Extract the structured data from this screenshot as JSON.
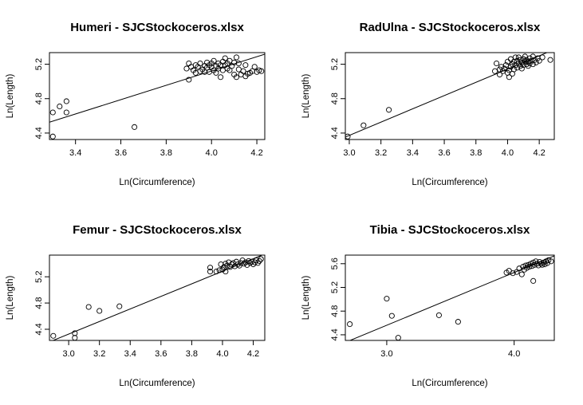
{
  "chart_data": [
    {
      "type": "scatter",
      "title": "Humeri - SJCStockoceros.xlsx",
      "xlabel": "Ln(Circumference)",
      "ylabel": "Ln(Length)",
      "xlim": [
        3.285,
        4.235
      ],
      "ylim": [
        4.325,
        5.335
      ],
      "xticks": [
        "3.4",
        "3.6",
        "3.8",
        "4.0",
        "4.2"
      ],
      "yticks": [
        "4.4",
        "4.8",
        "5.2"
      ],
      "fit": {
        "x": [
          3.285,
          4.235
        ],
        "y": [
          4.526,
          5.317
        ]
      },
      "points": [
        [
          3.3,
          4.64
        ],
        [
          3.33,
          4.71
        ],
        [
          3.36,
          4.77
        ],
        [
          3.36,
          4.64
        ],
        [
          3.3,
          4.36
        ],
        [
          3.66,
          4.47
        ],
        [
          3.89,
          5.15
        ],
        [
          3.9,
          5.21
        ],
        [
          3.9,
          5.02
        ],
        [
          3.91,
          5.17
        ],
        [
          3.92,
          5.13
        ],
        [
          3.93,
          5.19
        ],
        [
          3.93,
          5.1
        ],
        [
          3.94,
          5.17
        ],
        [
          3.95,
          5.12
        ],
        [
          3.95,
          5.21
        ],
        [
          3.96,
          5.14
        ],
        [
          3.97,
          5.18
        ],
        [
          3.97,
          5.11
        ],
        [
          3.98,
          5.22
        ],
        [
          3.98,
          5.16
        ],
        [
          3.99,
          5.19
        ],
        [
          3.99,
          5.11
        ],
        [
          4.0,
          5.17
        ],
        [
          4.0,
          5.21
        ],
        [
          4.01,
          5.13
        ],
        [
          4.01,
          5.24
        ],
        [
          4.02,
          5.18
        ],
        [
          4.02,
          5.1
        ],
        [
          4.03,
          5.21
        ],
        [
          4.03,
          5.15
        ],
        [
          4.04,
          5.19
        ],
        [
          4.04,
          5.05
        ],
        [
          4.05,
          5.23
        ],
        [
          4.05,
          5.13
        ],
        [
          4.06,
          5.27
        ],
        [
          4.06,
          5.19
        ],
        [
          4.07,
          5.21
        ],
        [
          4.07,
          5.15
        ],
        [
          4.08,
          5.24
        ],
        [
          4.08,
          5.13
        ],
        [
          4.09,
          5.18
        ],
        [
          4.1,
          5.08
        ],
        [
          4.1,
          5.22
        ],
        [
          4.11,
          5.28
        ],
        [
          4.11,
          5.05
        ],
        [
          4.12,
          5.14
        ],
        [
          4.12,
          5.21
        ],
        [
          4.13,
          5.08
        ],
        [
          4.14,
          5.12
        ],
        [
          4.15,
          5.06
        ],
        [
          4.15,
          5.19
        ],
        [
          4.16,
          5.09
        ],
        [
          4.17,
          5.1
        ],
        [
          4.18,
          5.12
        ],
        [
          4.19,
          5.17
        ],
        [
          4.2,
          5.11
        ],
        [
          4.21,
          5.13
        ],
        [
          4.22,
          5.12
        ]
      ]
    },
    {
      "type": "scatter",
      "title": "RadUlna - SJCStockoceros.xlsx",
      "xlabel": "Ln(Circumference)",
      "ylabel": "Ln(Length)",
      "xlim": [
        2.975,
        4.295
      ],
      "ylim": [
        4.325,
        5.335
      ],
      "xticks": [
        "3.0",
        "3.2",
        "3.4",
        "3.6",
        "3.8",
        "4.0",
        "4.2"
      ],
      "yticks": [
        "4.4",
        "4.8",
        "5.2"
      ],
      "fit": {
        "x": [
          2.975,
          4.295
        ],
        "y": [
          4.354,
          5.371
        ]
      },
      "points": [
        [
          2.99,
          4.36
        ],
        [
          3.09,
          4.49
        ],
        [
          3.25,
          4.67
        ],
        [
          3.92,
          5.12
        ],
        [
          3.93,
          5.21
        ],
        [
          3.95,
          5.14
        ],
        [
          3.95,
          5.08
        ],
        [
          3.96,
          5.17
        ],
        [
          3.97,
          5.12
        ],
        [
          3.98,
          5.15
        ],
        [
          3.99,
          5.19
        ],
        [
          4.0,
          5.1
        ],
        [
          4.0,
          5.23
        ],
        [
          4.01,
          5.13
        ],
        [
          4.01,
          5.05
        ],
        [
          4.02,
          5.17
        ],
        [
          4.02,
          5.26
        ],
        [
          4.03,
          5.2
        ],
        [
          4.03,
          5.09
        ],
        [
          4.04,
          5.23
        ],
        [
          4.04,
          5.14
        ],
        [
          4.05,
          5.28
        ],
        [
          4.05,
          5.19
        ],
        [
          4.06,
          5.24
        ],
        [
          4.06,
          5.16
        ],
        [
          4.07,
          5.21
        ],
        [
          4.07,
          5.28
        ],
        [
          4.08,
          5.18
        ],
        [
          4.08,
          5.25
        ],
        [
          4.09,
          5.22
        ],
        [
          4.09,
          5.15
        ],
        [
          4.1,
          5.26
        ],
        [
          4.1,
          5.19
        ],
        [
          4.11,
          5.23
        ],
        [
          4.11,
          5.29
        ],
        [
          4.12,
          5.2
        ],
        [
          4.12,
          5.25
        ],
        [
          4.13,
          5.23
        ],
        [
          4.13,
          5.18
        ],
        [
          4.14,
          5.27
        ],
        [
          4.14,
          5.21
        ],
        [
          4.15,
          5.24
        ],
        [
          4.16,
          5.29
        ],
        [
          4.16,
          5.2
        ],
        [
          4.17,
          5.25
        ],
        [
          4.18,
          5.22
        ],
        [
          4.19,
          5.27
        ],
        [
          4.2,
          5.24
        ],
        [
          4.22,
          5.28
        ],
        [
          4.27,
          5.25
        ]
      ]
    },
    {
      "type": "scatter",
      "title": "Femur - SJCStockoceros.xlsx",
      "xlabel": "Ln(Circumference)",
      "ylabel": "Ln(Length)",
      "xlim": [
        2.875,
        4.275
      ],
      "ylim": [
        4.23,
        5.53
      ],
      "xticks": [
        "3.0",
        "3.2",
        "3.4",
        "3.6",
        "3.8",
        "4.0",
        "4.2"
      ],
      "yticks": [
        "4.4",
        "4.8",
        "5.2"
      ],
      "fit": {
        "x": [
          2.875,
          4.275
        ],
        "y": [
          4.207,
          5.547
        ]
      },
      "points": [
        [
          2.9,
          4.3
        ],
        [
          3.04,
          4.34
        ],
        [
          3.04,
          4.27
        ],
        [
          3.13,
          4.74
        ],
        [
          3.2,
          4.68
        ],
        [
          3.33,
          4.75
        ],
        [
          3.92,
          5.28
        ],
        [
          3.92,
          5.34
        ],
        [
          3.96,
          5.28
        ],
        [
          3.98,
          5.3
        ],
        [
          3.99,
          5.39
        ],
        [
          4.0,
          5.31
        ],
        [
          4.01,
          5.35
        ],
        [
          4.02,
          5.4
        ],
        [
          4.02,
          5.28
        ],
        [
          4.03,
          5.37
        ],
        [
          4.04,
          5.42
        ],
        [
          4.05,
          5.35
        ],
        [
          4.06,
          5.39
        ],
        [
          4.07,
          5.41
        ],
        [
          4.08,
          5.36
        ],
        [
          4.09,
          5.43
        ],
        [
          4.1,
          5.39
        ],
        [
          4.11,
          5.37
        ],
        [
          4.12,
          5.41
        ],
        [
          4.13,
          5.45
        ],
        [
          4.14,
          5.4
        ],
        [
          4.15,
          5.42
        ],
        [
          4.16,
          5.38
        ],
        [
          4.17,
          5.44
        ],
        [
          4.18,
          5.41
        ],
        [
          4.19,
          5.43
        ],
        [
          4.2,
          5.39
        ],
        [
          4.21,
          5.42
        ],
        [
          4.22,
          5.45
        ],
        [
          4.23,
          5.41
        ],
        [
          4.24,
          5.44
        ],
        [
          4.25,
          5.47
        ]
      ]
    },
    {
      "type": "scatter",
      "title": "Tibia - SJCStockoceros.xlsx",
      "xlabel": "Ln(Circumference)",
      "ylabel": "Ln(Length)",
      "xlim": [
        2.675,
        4.315
      ],
      "ylim": [
        4.305,
        5.745
      ],
      "xticks": [
        "3.0",
        "4.0"
      ],
      "yticks": [
        "4.4",
        "4.8",
        "5.2",
        "5.6"
      ],
      "fit": {
        "x": [
          2.675,
          4.315
        ],
        "y": [
          4.272,
          5.732
        ]
      },
      "points": [
        [
          2.71,
          4.58
        ],
        [
          3.0,
          5.01
        ],
        [
          3.04,
          4.72
        ],
        [
          3.09,
          4.35
        ],
        [
          3.41,
          4.73
        ],
        [
          3.56,
          4.62
        ],
        [
          3.94,
          5.45
        ],
        [
          3.96,
          5.48
        ],
        [
          3.99,
          5.44
        ],
        [
          4.02,
          5.46
        ],
        [
          4.04,
          5.52
        ],
        [
          4.06,
          5.42
        ],
        [
          4.07,
          5.55
        ],
        [
          4.08,
          5.5
        ],
        [
          4.09,
          5.57
        ],
        [
          4.1,
          5.53
        ],
        [
          4.11,
          5.58
        ],
        [
          4.12,
          5.55
        ],
        [
          4.13,
          5.6
        ],
        [
          4.14,
          5.56
        ],
        [
          4.15,
          5.31
        ],
        [
          4.15,
          5.62
        ],
        [
          4.16,
          5.58
        ],
        [
          4.17,
          5.64
        ],
        [
          4.18,
          5.6
        ],
        [
          4.19,
          5.57
        ],
        [
          4.2,
          5.63
        ],
        [
          4.21,
          5.6
        ],
        [
          4.22,
          5.58
        ],
        [
          4.23,
          5.62
        ],
        [
          4.24,
          5.59
        ],
        [
          4.25,
          5.64
        ],
        [
          4.26,
          5.61
        ],
        [
          4.27,
          5.66
        ],
        [
          4.29,
          5.64
        ]
      ]
    }
  ]
}
